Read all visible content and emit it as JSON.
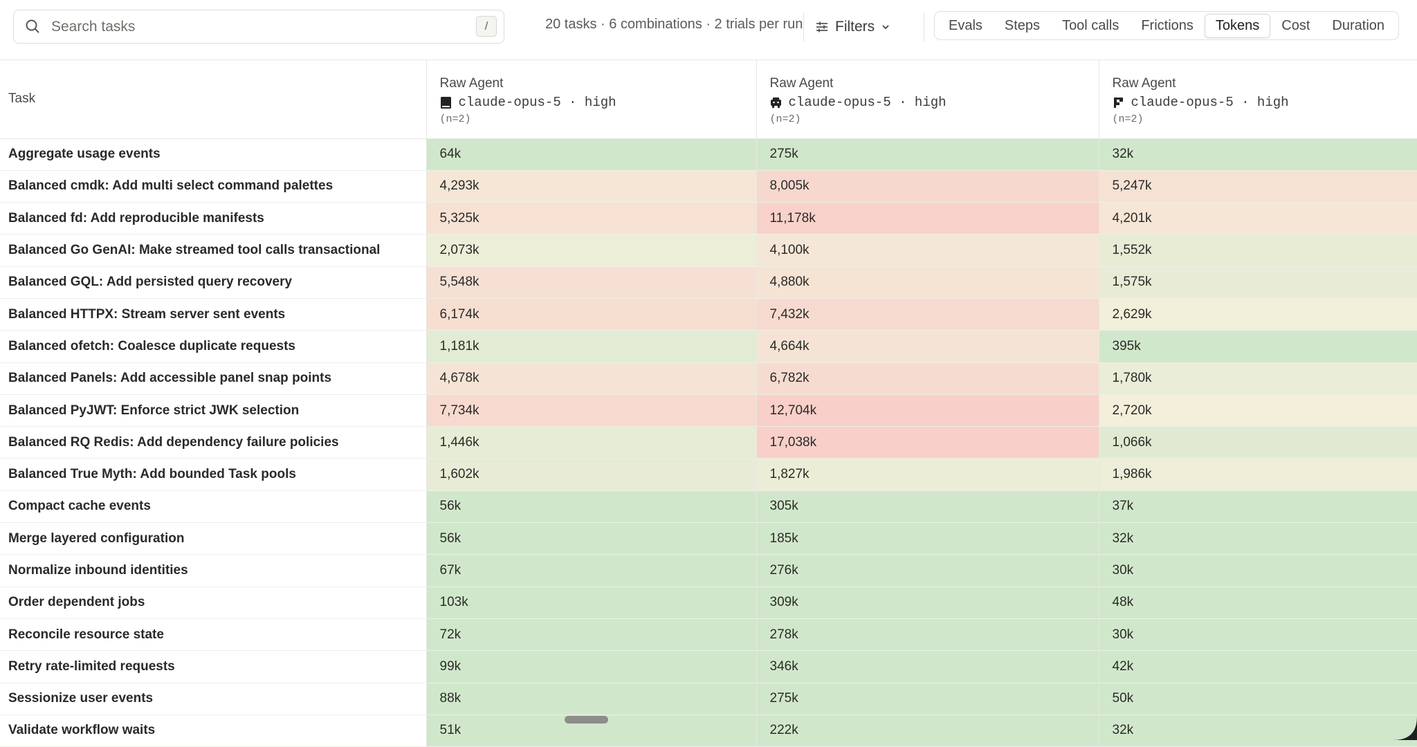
{
  "search": {
    "placeholder": "Search tasks",
    "shortcut": "/"
  },
  "summary": "20 tasks · 6 combinations · 2 trials per run",
  "filters": {
    "label": "Filters"
  },
  "tabs": [
    {
      "label": "Evals",
      "active": false
    },
    {
      "label": "Steps",
      "active": false
    },
    {
      "label": "Tool calls",
      "active": false
    },
    {
      "label": "Frictions",
      "active": false
    },
    {
      "label": "Tokens",
      "active": true
    },
    {
      "label": "Cost",
      "active": false
    },
    {
      "label": "Duration",
      "active": false
    }
  ],
  "table": {
    "task_header": "Task",
    "columns": [
      {
        "agent": "Raw Agent",
        "icon": "book-icon",
        "model": "claude-opus-5 · high",
        "n": "(n=2)"
      },
      {
        "agent": "Raw Agent",
        "icon": "robot-icon",
        "model": "claude-opus-5 · high",
        "n": "(n=2)"
      },
      {
        "agent": "Raw Agent",
        "icon": "cursor-logo-icon",
        "model": "claude-opus-5 · high",
        "n": "(n=2)"
      }
    ],
    "rows": [
      {
        "task": "Aggregate usage events",
        "values": [
          "64k",
          "275k",
          "32k"
        ],
        "tokens_k": [
          64,
          275,
          32
        ]
      },
      {
        "task": "Balanced cmdk: Add multi select command palettes",
        "values": [
          "4,293k",
          "8,005k",
          "5,247k"
        ],
        "tokens_k": [
          4293,
          8005,
          5247
        ]
      },
      {
        "task": "Balanced fd: Add reproducible manifests",
        "values": [
          "5,325k",
          "11,178k",
          "4,201k"
        ],
        "tokens_k": [
          5325,
          11178,
          4201
        ]
      },
      {
        "task": "Balanced Go GenAI: Make streamed tool calls transactional",
        "values": [
          "2,073k",
          "4,100k",
          "1,552k"
        ],
        "tokens_k": [
          2073,
          4100,
          1552
        ]
      },
      {
        "task": "Balanced GQL: Add persisted query recovery",
        "values": [
          "5,548k",
          "4,880k",
          "1,575k"
        ],
        "tokens_k": [
          5548,
          4880,
          1575
        ]
      },
      {
        "task": "Balanced HTTPX: Stream server sent events",
        "values": [
          "6,174k",
          "7,432k",
          "2,629k"
        ],
        "tokens_k": [
          6174,
          7432,
          2629
        ]
      },
      {
        "task": "Balanced ofetch: Coalesce duplicate requests",
        "values": [
          "1,181k",
          "4,664k",
          "395k"
        ],
        "tokens_k": [
          1181,
          4664,
          395
        ]
      },
      {
        "task": "Balanced Panels: Add accessible panel snap points",
        "values": [
          "4,678k",
          "6,782k",
          "1,780k"
        ],
        "tokens_k": [
          4678,
          6782,
          1780
        ]
      },
      {
        "task": "Balanced PyJWT: Enforce strict JWK selection",
        "values": [
          "7,734k",
          "12,704k",
          "2,720k"
        ],
        "tokens_k": [
          7734,
          12704,
          2720
        ]
      },
      {
        "task": "Balanced RQ Redis: Add dependency failure policies",
        "values": [
          "1,446k",
          "17,038k",
          "1,066k"
        ],
        "tokens_k": [
          1446,
          17038,
          1066
        ]
      },
      {
        "task": "Balanced True Myth: Add bounded Task pools",
        "values": [
          "1,602k",
          "1,827k",
          "1,986k"
        ],
        "tokens_k": [
          1602,
          1827,
          1986
        ]
      },
      {
        "task": "Compact cache events",
        "values": [
          "56k",
          "305k",
          "37k"
        ],
        "tokens_k": [
          56,
          305,
          37
        ]
      },
      {
        "task": "Merge layered configuration",
        "values": [
          "56k",
          "185k",
          "32k"
        ],
        "tokens_k": [
          56,
          185,
          32
        ]
      },
      {
        "task": "Normalize inbound identities",
        "values": [
          "67k",
          "276k",
          "30k"
        ],
        "tokens_k": [
          67,
          276,
          30
        ]
      },
      {
        "task": "Order dependent jobs",
        "values": [
          "103k",
          "309k",
          "48k"
        ],
        "tokens_k": [
          103,
          309,
          48
        ]
      },
      {
        "task": "Reconcile resource state",
        "values": [
          "72k",
          "278k",
          "30k"
        ],
        "tokens_k": [
          72,
          278,
          30
        ]
      },
      {
        "task": "Retry rate-limited requests",
        "values": [
          "99k",
          "346k",
          "42k"
        ],
        "tokens_k": [
          99,
          346,
          42
        ]
      },
      {
        "task": "Sessionize user events",
        "values": [
          "88k",
          "275k",
          "50k"
        ],
        "tokens_k": [
          88,
          275,
          50
        ]
      },
      {
        "task": "Validate workflow waits",
        "values": [
          "51k",
          "222k",
          "32k"
        ],
        "tokens_k": [
          51,
          222,
          32
        ]
      }
    ]
  },
  "heat_colors": {
    "low": "#d1e7cb",
    "mid": "#f4efdb",
    "high": "#f8cfc9"
  }
}
